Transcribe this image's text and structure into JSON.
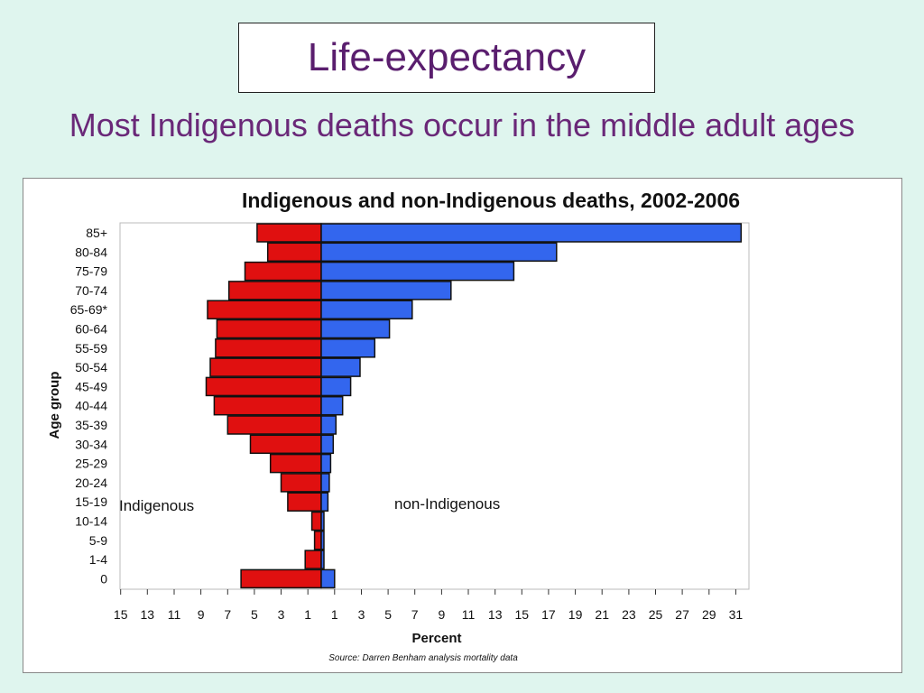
{
  "slide": {
    "title": "Life-expectancy",
    "subtitle": "Most Indigenous deaths occur in the middle adult ages"
  },
  "chart_data": {
    "type": "bar",
    "orientation": "horizontal-population-pyramid",
    "title": "Indigenous and non-Indigenous deaths, 2002-2006",
    "xlabel": "Percent",
    "ylabel": "Age group",
    "source": "Source: Darren Benham analysis mortality data",
    "categories": [
      "85+",
      "80-84",
      "75-79",
      "70-74",
      "65-69*",
      "60-64",
      "55-59",
      "50-54",
      "45-49",
      "40-44",
      "35-39",
      "30-34",
      "25-29",
      "20-24",
      "15-19",
      "10-14",
      "5-9",
      "1-4",
      "0"
    ],
    "series": [
      {
        "name": "Indigenous",
        "side": "left",
        "color": "#e01010",
        "values": [
          4.8,
          4.0,
          5.7,
          6.9,
          8.5,
          7.8,
          7.9,
          8.3,
          8.6,
          8.0,
          7.0,
          5.3,
          3.8,
          3.0,
          2.5,
          0.7,
          0.5,
          1.2,
          6.0
        ]
      },
      {
        "name": "non-Indigenous",
        "side": "right",
        "color": "#3366ee",
        "values": [
          31.4,
          17.6,
          14.4,
          9.7,
          6.8,
          5.1,
          4.0,
          2.9,
          2.2,
          1.6,
          1.1,
          0.9,
          0.7,
          0.6,
          0.5,
          0.2,
          0.2,
          0.2,
          1.0
        ]
      }
    ],
    "x_tick_labels": [
      "15",
      "13",
      "11",
      "9",
      "7",
      "5",
      "3",
      "1",
      "1",
      "3",
      "5",
      "7",
      "9",
      "11",
      "13",
      "15",
      "17",
      "19",
      "21",
      "23",
      "25",
      "27",
      "29",
      "31"
    ],
    "xlim_left": 15,
    "xlim_right": 32,
    "grid": false
  }
}
